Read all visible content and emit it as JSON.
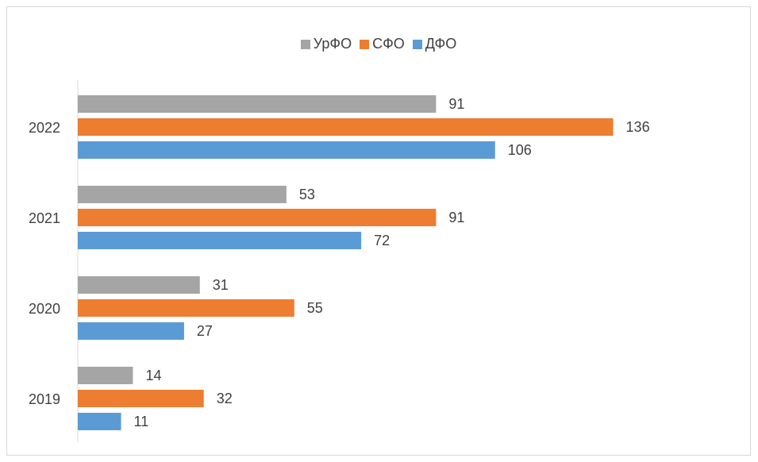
{
  "chart_data": {
    "type": "bar",
    "orientation": "horizontal",
    "categories": [
      "2019",
      "2020",
      "2021",
      "2022"
    ],
    "series": [
      {
        "name": "УрФО",
        "values": [
          14,
          31,
          53,
          91
        ],
        "color": "#a5a5a5"
      },
      {
        "name": "СФО",
        "values": [
          32,
          55,
          91,
          136
        ],
        "color": "#ed7d31"
      },
      {
        "name": "ДФО",
        "values": [
          11,
          27,
          72,
          106
        ],
        "color": "#5b9bd5"
      }
    ],
    "title": "",
    "xlabel": "",
    "ylabel": "",
    "xlim": [
      0,
      140
    ],
    "legend_position": "top",
    "grid": false,
    "data_labels": true
  }
}
